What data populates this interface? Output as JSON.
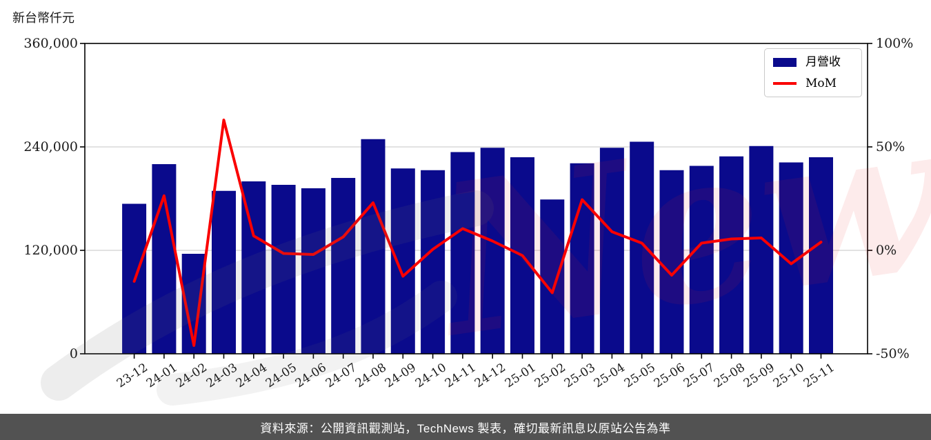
{
  "page": {
    "unit_label": "新台幣仟元",
    "watermark_text": "News",
    "footer": "資料來源：公開資訊觀測站，TechNews 製表，確切最新訊息以原站公告為準"
  },
  "chart_data": {
    "type": "bar",
    "combo": "bar+line",
    "title": "",
    "unit_label": "新台幣仟元",
    "categories": [
      "23-12",
      "24-01",
      "24-02",
      "24-03",
      "24-04",
      "24-05",
      "24-06",
      "24-07",
      "24-08",
      "24-09",
      "24-10",
      "24-11",
      "24-12",
      "25-01",
      "25-02",
      "25-03",
      "25-04",
      "25-05",
      "25-06",
      "25-07",
      "25-08",
      "25-09",
      "25-10",
      "25-11"
    ],
    "series": [
      {
        "name": "月營收",
        "type": "bar",
        "axis": "left",
        "unit": "新台幣仟元",
        "color": "#0a0a8c",
        "values": [
          174000,
          220000,
          116000,
          189000,
          200000,
          196000,
          192000,
          204000,
          249000,
          215000,
          213000,
          234000,
          239000,
          228000,
          179000,
          221000,
          239000,
          246000,
          213000,
          218000,
          229000,
          241000,
          222000,
          228000
        ]
      },
      {
        "name": "MoM",
        "type": "line",
        "axis": "right",
        "unit": "%",
        "color": "#fa0000",
        "values": [
          -15,
          26.4,
          -46,
          63,
          7,
          -1.5,
          -2,
          6.5,
          23,
          -12.5,
          0.5,
          10.5,
          4.5,
          -2.5,
          -20.5,
          24.5,
          9,
          3.5,
          -12,
          3.5,
          5.5,
          6,
          -6.5,
          4
        ]
      }
    ],
    "y_axis_left": {
      "range": [
        0,
        360000
      ],
      "ticks": [
        0,
        120000,
        240000,
        360000
      ],
      "tick_labels": [
        "0",
        "120,000",
        "240,000",
        "360,000"
      ],
      "grid_at": [
        120000,
        240000
      ]
    },
    "y_axis_right": {
      "range": [
        -50,
        100
      ],
      "ticks": [
        -50,
        0,
        50,
        100
      ],
      "tick_labels": [
        "-50%",
        "0%",
        "50%",
        "100%"
      ]
    },
    "legend_position": "top-right",
    "grid": "horizontal-light",
    "colors": {
      "bar": "#0a0a8c",
      "line": "#fa0000",
      "grid": "#d9d9d9",
      "spine": "#000000",
      "footer_bg": "#525252",
      "watermark_pink": "#ed1c24",
      "watermark_gray": "#9a9a9a"
    }
  }
}
